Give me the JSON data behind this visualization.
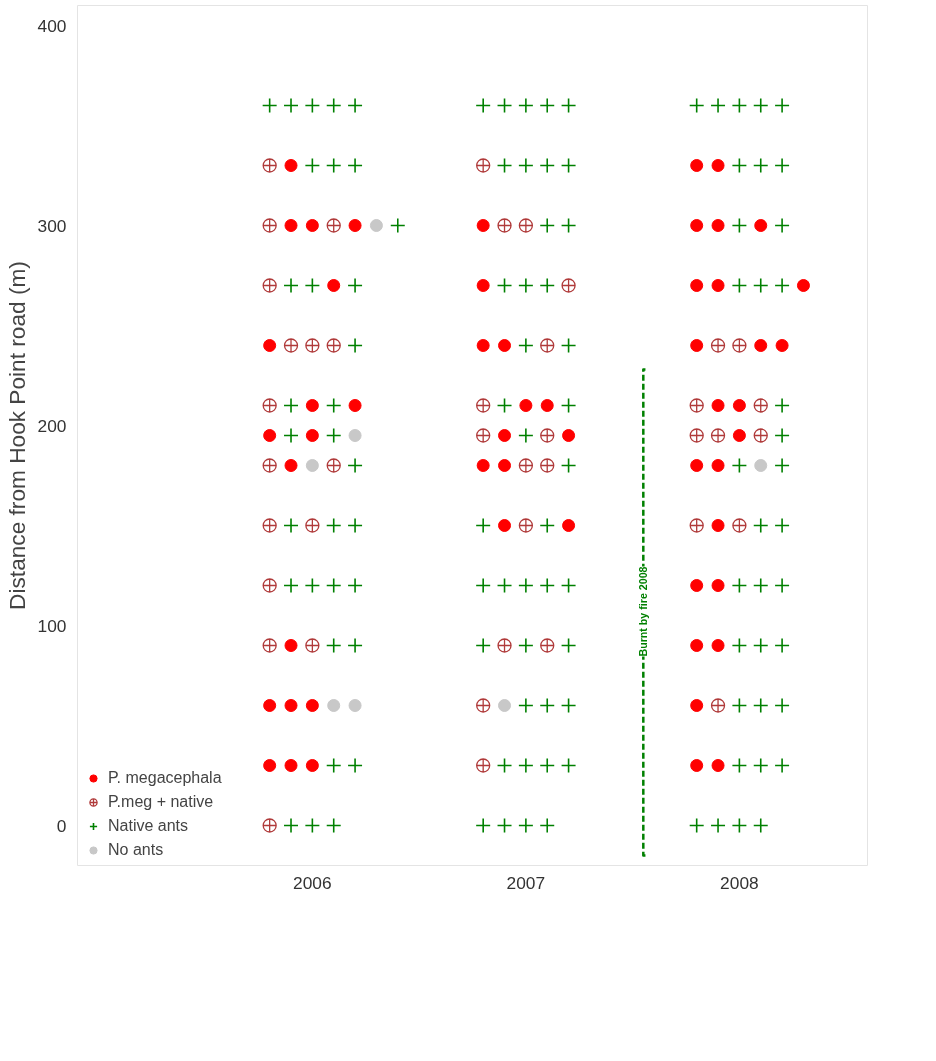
{
  "chart_data": {
    "type": "scatter",
    "ylabel": "Distance from Hook Point road (m)",
    "xlim": [
      2004.9,
      2008.6
    ],
    "ylim": [
      -20,
      410
    ],
    "xticks": [
      2006,
      2007,
      2008
    ],
    "yticks": [
      0,
      100,
      200,
      300,
      400
    ],
    "grid": false,
    "legend": "bottom left",
    "annotations": [
      {
        "text": "Burnt by fire 2008",
        "x": 2007.55,
        "y": 107
      }
    ],
    "series": [
      {
        "name": "P. megacephala",
        "color": "#ff0000",
        "marker": "circle",
        "x": [
          2005.9,
          2005.9,
          2006.0,
          2006.2,
          2006.1,
          2005.8,
          2006.0,
          2006.2,
          2005.8,
          2006.0,
          2005.9,
          2005.9,
          2005.8,
          2005.9,
          2006.0,
          2005.8,
          2005.9,
          2006.0,
          2006.8,
          2006.8,
          2006.8,
          2006.9,
          2007.0,
          2007.1,
          2006.9,
          2007.2,
          2006.8,
          2006.9,
          2006.9,
          2007.2,
          2007.8,
          2007.9,
          2007.8,
          2007.9,
          2008.1,
          2007.8,
          2007.9,
          2008.3,
          2007.8,
          2008.1,
          2008.2,
          2007.9,
          2008.0,
          2008.0,
          2007.8,
          2007.9,
          2007.9,
          2007.8,
          2007.9,
          2007.8,
          2007.9,
          2007.8,
          2007.8,
          2007.9
        ],
        "values": [
          330,
          300,
          300,
          300,
          270,
          240,
          210,
          210,
          195,
          195,
          180,
          90,
          60,
          60,
          60,
          30,
          30,
          30,
          300,
          270,
          240,
          240,
          210,
          210,
          195,
          195,
          180,
          180,
          150,
          150,
          330,
          330,
          300,
          300,
          300,
          270,
          270,
          270,
          240,
          240,
          240,
          210,
          210,
          195,
          180,
          180,
          150,
          120,
          120,
          90,
          90,
          60,
          30,
          30
        ]
      },
      {
        "name": "P.meg + native",
        "color": "#b03a3a",
        "marker": "circle_cross",
        "x": [
          2005.8,
          2005.8,
          2006.1,
          2005.8,
          2005.9,
          2006.0,
          2006.1,
          2005.8,
          2005.8,
          2006.1,
          2005.8,
          2006.0,
          2005.8,
          2005.8,
          2006.0,
          2005.8,
          2006.8,
          2006.9,
          2007.0,
          2007.2,
          2007.1,
          2006.8,
          2006.8,
          2007.1,
          2007.0,
          2007.1,
          2007.0,
          2006.9,
          2007.1,
          2006.8,
          2006.8,
          2007.9,
          2008.0,
          2007.8,
          2008.1,
          2007.8,
          2007.9,
          2008.1,
          2007.8,
          2008.0,
          2007.9
        ],
        "values": [
          330,
          300,
          300,
          270,
          240,
          240,
          240,
          210,
          180,
          180,
          150,
          150,
          120,
          90,
          90,
          0,
          330,
          300,
          300,
          270,
          240,
          210,
          195,
          195,
          180,
          180,
          150,
          90,
          90,
          60,
          30,
          240,
          240,
          210,
          210,
          195,
          195,
          195,
          150,
          150,
          60
        ]
      },
      {
        "name": "Native ants",
        "color": "#008000",
        "marker": "cross",
        "x": [
          2005.8,
          2005.9,
          2006.0,
          2006.1,
          2006.2,
          2006.0,
          2006.1,
          2006.2,
          2006.4,
          2005.9,
          2006.0,
          2006.2,
          2006.2,
          2005.9,
          2006.1,
          2005.9,
          2006.1,
          2006.2,
          2005.9,
          2006.1,
          2006.2,
          2005.9,
          2006.0,
          2006.1,
          2006.2,
          2006.1,
          2006.2,
          2006.1,
          2006.2,
          2005.9,
          2006.0,
          2006.1,
          2006.8,
          2006.9,
          2007.0,
          2007.1,
          2007.2,
          2006.9,
          2007.0,
          2007.1,
          2007.2,
          2007.1,
          2007.2,
          2006.9,
          2007.0,
          2007.1,
          2007.0,
          2007.2,
          2006.9,
          2007.2,
          2007.0,
          2007.2,
          2006.8,
          2007.1,
          2006.8,
          2006.9,
          2007.0,
          2007.1,
          2007.2,
          2006.8,
          2007.0,
          2007.2,
          2007.0,
          2007.1,
          2007.2,
          2006.9,
          2007.0,
          2007.1,
          2007.2,
          2006.8,
          2006.9,
          2007.0,
          2007.1,
          2007.8,
          2007.9,
          2008.0,
          2008.1,
          2008.2,
          2008.0,
          2008.1,
          2008.2,
          2008.0,
          2008.2,
          2008.0,
          2008.1,
          2008.2,
          2008.2,
          2008.2,
          2008.0,
          2008.2,
          2008.1,
          2008.2,
          2008.0,
          2008.1,
          2008.2,
          2008.0,
          2008.1,
          2008.2,
          2008.0,
          2008.1,
          2008.2,
          2008.0,
          2008.1,
          2008.2,
          2007.8,
          2007.9,
          2008.0,
          2008.1
        ],
        "values": [
          360,
          360,
          360,
          360,
          360,
          330,
          330,
          330,
          300,
          270,
          270,
          270,
          240,
          210,
          210,
          195,
          195,
          180,
          150,
          150,
          150,
          120,
          120,
          120,
          120,
          90,
          90,
          30,
          30,
          0,
          0,
          0,
          360,
          360,
          360,
          360,
          360,
          330,
          330,
          330,
          330,
          300,
          300,
          270,
          270,
          270,
          240,
          240,
          210,
          210,
          195,
          180,
          150,
          150,
          120,
          120,
          120,
          120,
          120,
          90,
          90,
          90,
          60,
          60,
          60,
          30,
          30,
          30,
          30,
          0,
          0,
          0,
          0,
          360,
          360,
          360,
          360,
          360,
          330,
          330,
          330,
          300,
          300,
          270,
          270,
          270,
          210,
          195,
          180,
          180,
          150,
          150,
          120,
          120,
          120,
          90,
          90,
          90,
          60,
          60,
          60,
          30,
          30,
          30,
          0,
          0,
          0,
          0
        ]
      },
      {
        "name": "No ants",
        "color": "#c8c8c8",
        "marker": "circle",
        "x": [
          2006.3,
          2006.2,
          2006.0,
          2006.1,
          2006.2,
          2006.9,
          2008.1
        ],
        "values": [
          300,
          195,
          180,
          60,
          60,
          60,
          180
        ]
      },
      {
        "type": "line",
        "color": "#008000",
        "line_style": "dashed",
        "x": [
          2007.56,
          2007.55,
          2007.55,
          2007.56
        ],
        "values": [
          -15,
          -15,
          228,
          228
        ]
      }
    ]
  }
}
